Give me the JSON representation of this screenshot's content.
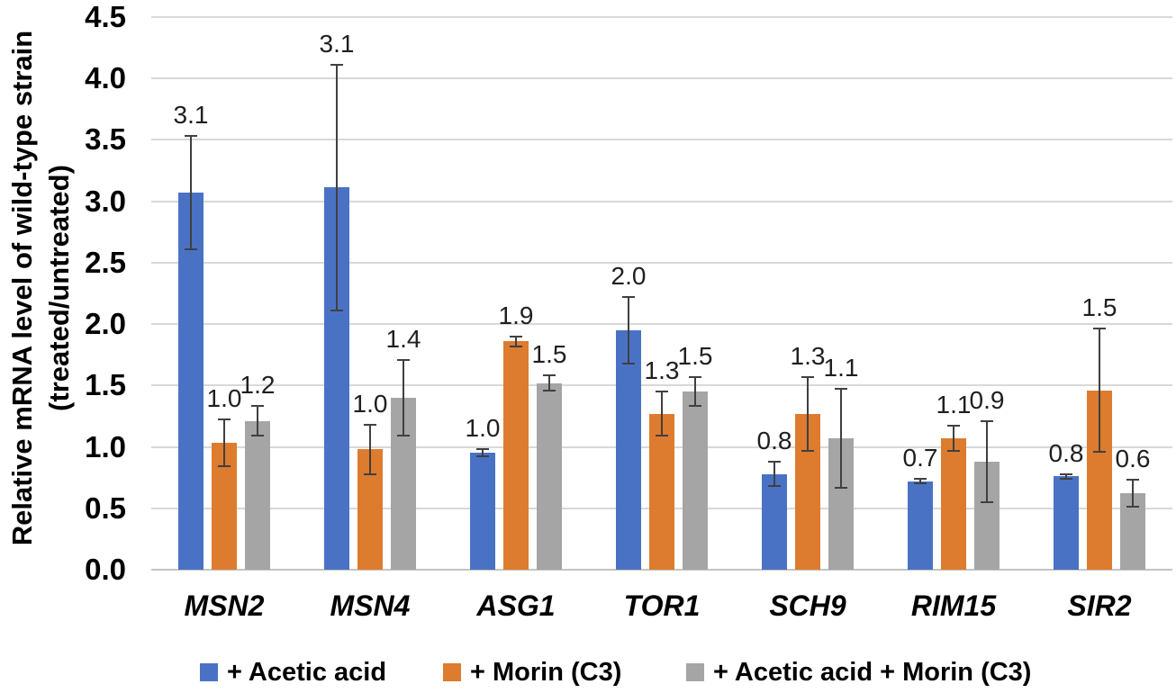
{
  "y_axis": {
    "title_line1": "Relative mRNA level of wild-type strain",
    "title_line2": "(treated/untreated)",
    "tick_labels": [
      "0.0",
      "0.5",
      "1.0",
      "1.5",
      "2.0",
      "2.5",
      "3.0",
      "3.5",
      "4.0",
      "4.5"
    ],
    "min": 0.0,
    "max": 4.5,
    "step": 0.5
  },
  "chart_data": {
    "type": "bar",
    "title": "",
    "xlabel": "",
    "ylabel": "Relative mRNA level of wild-type strain (treated/untreated)",
    "ylim": [
      0.0,
      4.5
    ],
    "grid": true,
    "legend_position": "bottom",
    "categories": [
      "MSN2",
      "MSN4",
      "ASG1",
      "TOR1",
      "SCH9",
      "RIM15",
      "SIR2"
    ],
    "series": [
      {
        "name": "+ Acetic acid",
        "color": "#4A72C4",
        "values": [
          3.07,
          3.11,
          0.95,
          1.95,
          0.78,
          0.72,
          0.76
        ],
        "errors": [
          0.46,
          1.0,
          0.03,
          0.27,
          0.1,
          0.02,
          0.02
        ],
        "labels": [
          "3.1",
          "3.1",
          "1.0",
          "2.0",
          "0.8",
          "0.7",
          "0.8"
        ]
      },
      {
        "name": "+ Morin (C3)",
        "color": "#DD7B2F",
        "values": [
          1.03,
          0.98,
          1.86,
          1.27,
          1.27,
          1.07,
          1.46
        ],
        "errors": [
          0.19,
          0.2,
          0.04,
          0.18,
          0.3,
          0.1,
          0.5
        ],
        "labels": [
          "1.0",
          "1.0",
          "1.9",
          "1.3",
          "1.3",
          "1.1",
          "1.5"
        ]
      },
      {
        "name": "+ Acetic acid + Morin (C3)",
        "color": "#A5A5A5",
        "values": [
          1.21,
          1.4,
          1.52,
          1.45,
          1.07,
          0.88,
          0.62
        ],
        "errors": [
          0.12,
          0.31,
          0.06,
          0.12,
          0.4,
          0.33,
          0.11
        ],
        "labels": [
          "1.2",
          "1.4",
          "1.5",
          "1.5",
          "1.1",
          "0.9",
          "0.6"
        ]
      }
    ],
    "error_bar_color": "#404040",
    "gridline_color": "#D8D8D8"
  }
}
